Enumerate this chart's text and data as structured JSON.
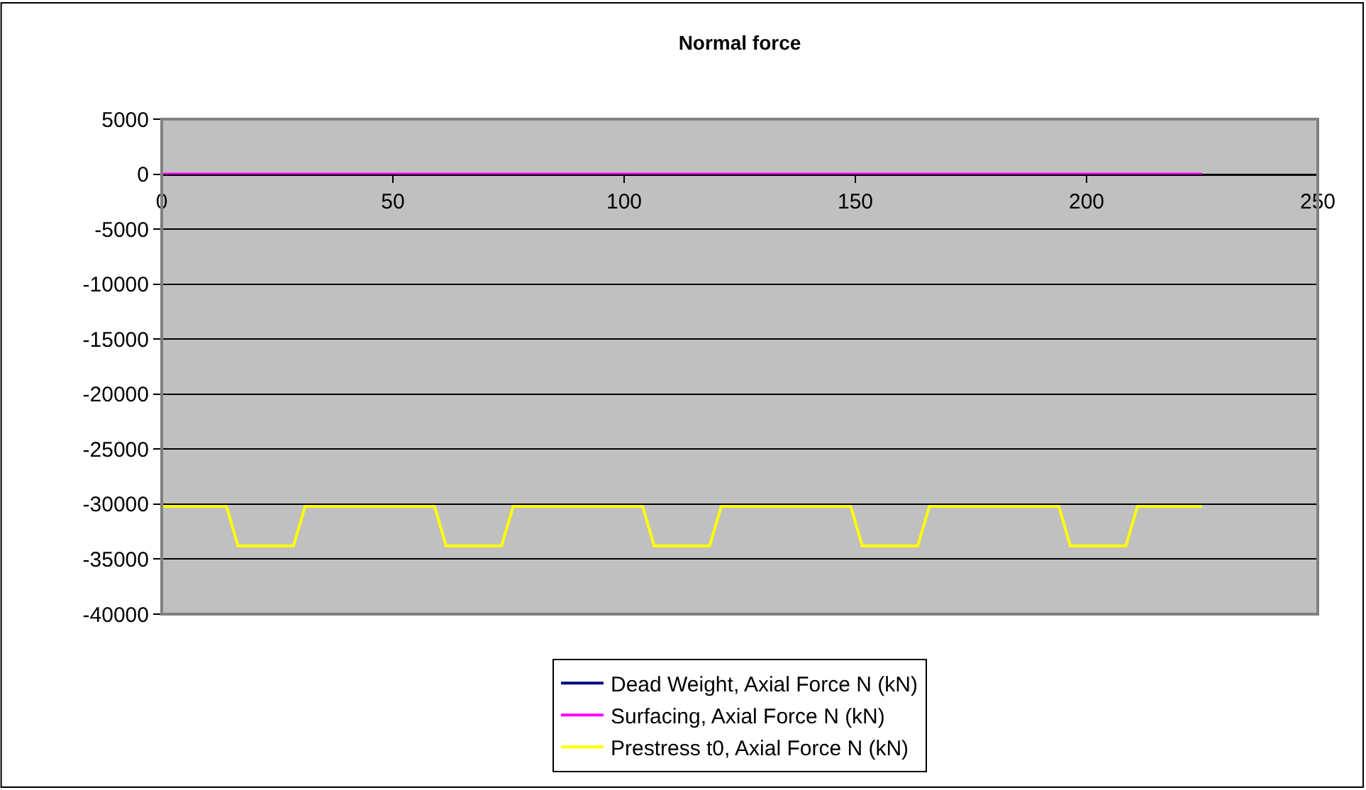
{
  "chart_data": {
    "type": "line",
    "title": "Normal force",
    "xlim": [
      0,
      250
    ],
    "xticks": [
      0,
      50,
      100,
      150,
      200,
      250
    ],
    "ylim": [
      -40000,
      5000
    ],
    "yticks": [
      5000,
      0,
      -5000,
      -10000,
      -15000,
      -20000,
      -25000,
      -30000,
      -35000,
      -40000
    ],
    "grid": "y",
    "legend": "bottom",
    "marker": "none",
    "line_style": "solid",
    "series": [
      {
        "name": "Dead Weight, Axial Force N (kN)",
        "color": "#000080",
        "values": [
          null,
          null
        ]
      },
      {
        "name": "Surfacing, Axial Force N (kN)",
        "color": "#ff00ff",
        "x": [
          0,
          225
        ],
        "values": [
          0,
          0
        ]
      },
      {
        "name": "Prestress t0, Axial Force N (kN)",
        "color": "#ffff00",
        "x": [
          0,
          14,
          16.5,
          28.5,
          31,
          59,
          61.5,
          73.5,
          76,
          104,
          106.5,
          118.5,
          121,
          149,
          151.5,
          163.5,
          166,
          194,
          196.5,
          208.5,
          211,
          225
        ],
        "values": [
          -30200,
          -30200,
          -33800,
          -33800,
          -30200,
          -30200,
          -33800,
          -33800,
          -30200,
          -30200,
          -33800,
          -33800,
          -30200,
          -30200,
          -33800,
          -33800,
          -30200,
          -30200,
          -33800,
          -33800,
          -30200,
          -30200
        ]
      }
    ]
  }
}
